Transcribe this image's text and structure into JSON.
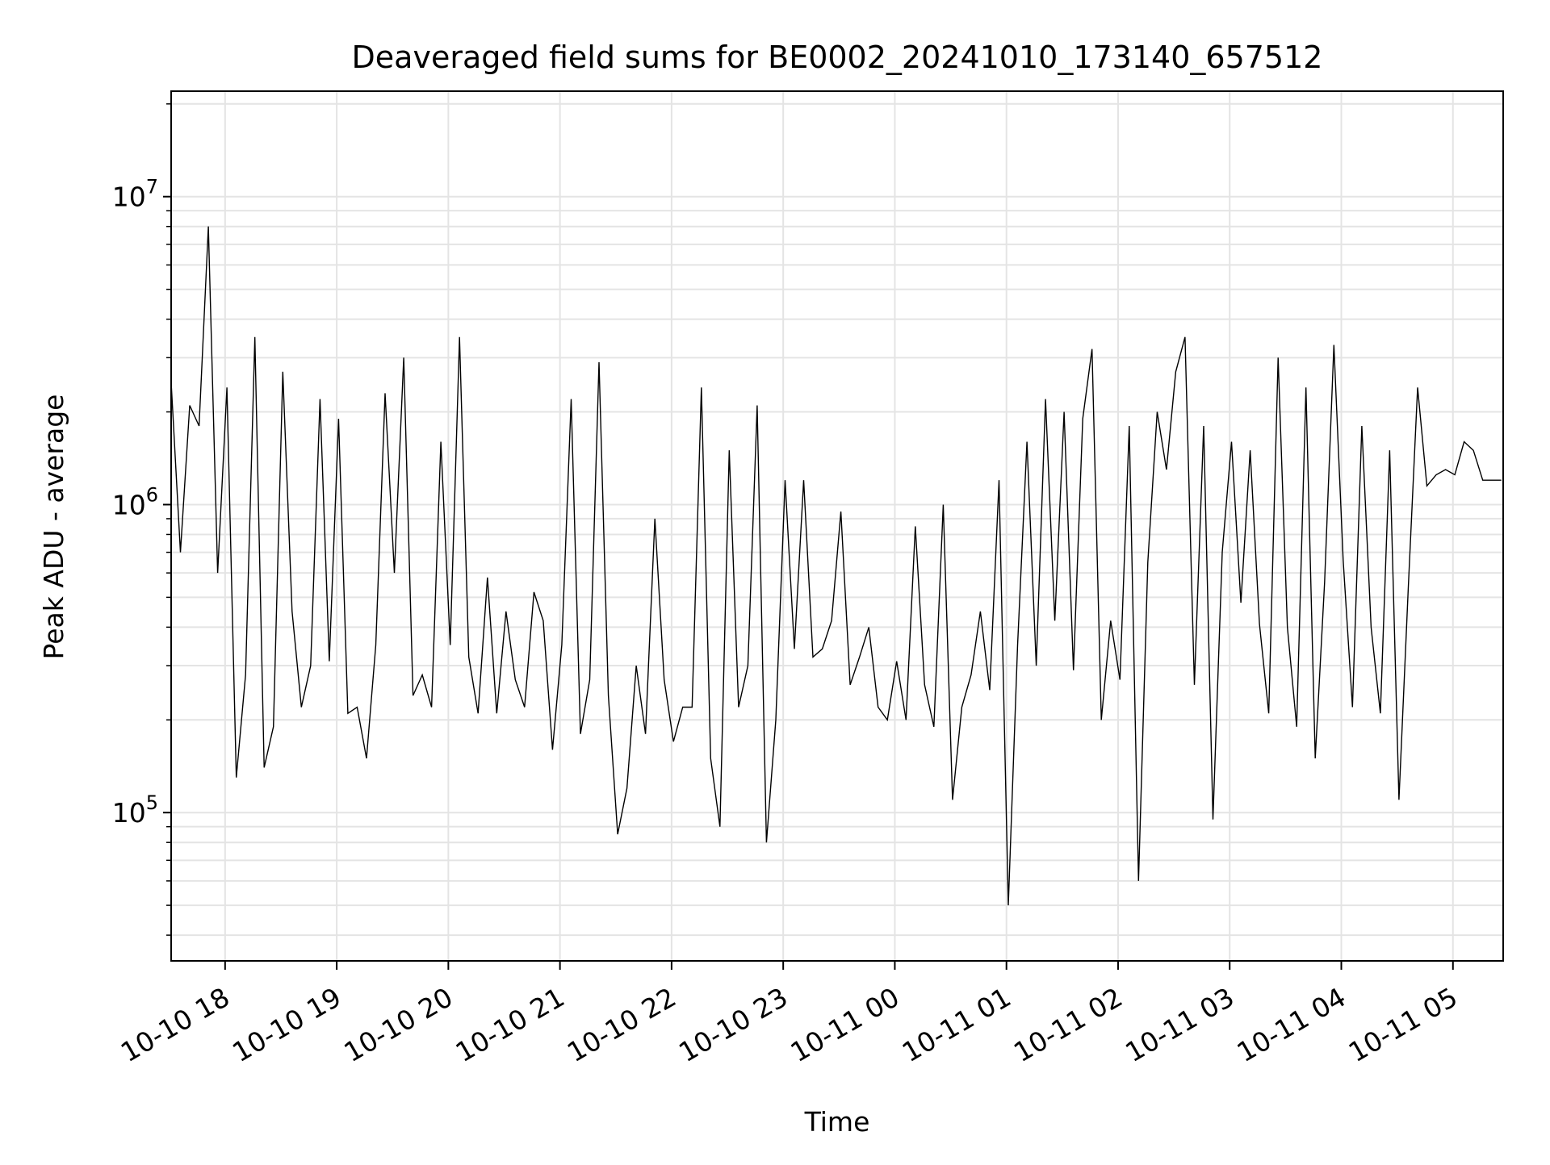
{
  "chart_data": {
    "type": "line",
    "title": "Deaveraged field sums for BE0002_20241010_173140_657512",
    "xlabel": "Time",
    "ylabel": "Peak ADU - average",
    "yscale": "log",
    "ylim": [
      33000,
      22000000
    ],
    "xlim": [
      "2024-10-10 17:31",
      "2024-10-11 05:27"
    ],
    "grid": true,
    "x_ticks": [
      "10-10 18",
      "10-10 19",
      "10-10 20",
      "10-10 21",
      "10-10 22",
      "10-10 23",
      "10-11 00",
      "10-11 01",
      "10-11 02",
      "10-11 03",
      "10-11 04",
      "10-11 05"
    ],
    "y_ticks": [
      {
        "value": 100000,
        "base": "10",
        "exp": "5"
      },
      {
        "value": 1000000,
        "base": "10",
        "exp": "6"
      },
      {
        "value": 10000000,
        "base": "10",
        "exp": "7"
      }
    ],
    "series": [
      {
        "color": "#000000",
        "x": [
          "2024-10-10 17:31",
          "2024-10-10 17:36",
          "2024-10-10 17:41",
          "2024-10-10 17:46",
          "2024-10-10 17:51",
          "2024-10-10 17:56",
          "2024-10-10 18:01",
          "2024-10-10 18:06",
          "2024-10-10 18:11",
          "2024-10-10 18:16",
          "2024-10-10 18:21",
          "2024-10-10 18:26",
          "2024-10-10 18:31",
          "2024-10-10 18:36",
          "2024-10-10 18:41",
          "2024-10-10 18:46",
          "2024-10-10 18:51",
          "2024-10-10 18:56",
          "2024-10-10 19:01",
          "2024-10-10 19:06",
          "2024-10-10 19:11",
          "2024-10-10 19:16",
          "2024-10-10 19:21",
          "2024-10-10 19:26",
          "2024-10-10 19:31",
          "2024-10-10 19:36",
          "2024-10-10 19:41",
          "2024-10-10 19:46",
          "2024-10-10 19:51",
          "2024-10-10 19:56",
          "2024-10-10 20:01",
          "2024-10-10 20:06",
          "2024-10-10 20:11",
          "2024-10-10 20:16",
          "2024-10-10 20:21",
          "2024-10-10 20:26",
          "2024-10-10 20:31",
          "2024-10-10 20:36",
          "2024-10-10 20:41",
          "2024-10-10 20:46",
          "2024-10-10 20:51",
          "2024-10-10 20:56",
          "2024-10-10 21:01",
          "2024-10-10 21:06",
          "2024-10-10 21:11",
          "2024-10-10 21:16",
          "2024-10-10 21:21",
          "2024-10-10 21:26",
          "2024-10-10 21:31",
          "2024-10-10 21:36",
          "2024-10-10 21:41",
          "2024-10-10 21:46",
          "2024-10-10 21:51",
          "2024-10-10 21:56",
          "2024-10-10 22:01",
          "2024-10-10 22:06",
          "2024-10-10 22:11",
          "2024-10-10 22:16",
          "2024-10-10 22:21",
          "2024-10-10 22:26",
          "2024-10-10 22:31",
          "2024-10-10 22:36",
          "2024-10-10 22:41",
          "2024-10-10 22:46",
          "2024-10-10 22:51",
          "2024-10-10 22:56",
          "2024-10-10 23:01",
          "2024-10-10 23:06",
          "2024-10-10 23:11",
          "2024-10-10 23:16",
          "2024-10-10 23:21",
          "2024-10-10 23:26",
          "2024-10-10 23:31",
          "2024-10-10 23:36",
          "2024-10-10 23:41",
          "2024-10-10 23:46",
          "2024-10-10 23:51",
          "2024-10-10 23:56",
          "2024-10-11 00:01",
          "2024-10-11 00:06",
          "2024-10-11 00:11",
          "2024-10-11 00:16",
          "2024-10-11 00:21",
          "2024-10-11 00:26",
          "2024-10-11 00:31",
          "2024-10-11 00:36",
          "2024-10-11 00:41",
          "2024-10-11 00:46",
          "2024-10-11 00:51",
          "2024-10-11 00:56",
          "2024-10-11 01:01",
          "2024-10-11 01:06",
          "2024-10-11 01:11",
          "2024-10-11 01:16",
          "2024-10-11 01:21",
          "2024-10-11 01:26",
          "2024-10-11 01:31",
          "2024-10-11 01:36",
          "2024-10-11 01:41",
          "2024-10-11 01:46",
          "2024-10-11 01:51",
          "2024-10-11 01:56",
          "2024-10-11 02:01",
          "2024-10-11 02:06",
          "2024-10-11 02:11",
          "2024-10-11 02:16",
          "2024-10-11 02:21",
          "2024-10-11 02:26",
          "2024-10-11 02:31",
          "2024-10-11 02:36",
          "2024-10-11 02:41",
          "2024-10-11 02:46",
          "2024-10-11 02:51",
          "2024-10-11 02:56",
          "2024-10-11 03:01",
          "2024-10-11 03:06",
          "2024-10-11 03:11",
          "2024-10-11 03:16",
          "2024-10-11 03:21",
          "2024-10-11 03:26",
          "2024-10-11 03:31",
          "2024-10-11 03:36",
          "2024-10-11 03:41",
          "2024-10-11 03:46",
          "2024-10-11 03:51",
          "2024-10-11 03:56",
          "2024-10-11 04:01",
          "2024-10-11 04:06",
          "2024-10-11 04:11",
          "2024-10-11 04:16",
          "2024-10-11 04:21",
          "2024-10-11 04:26",
          "2024-10-11 04:31",
          "2024-10-11 04:36",
          "2024-10-11 04:41",
          "2024-10-11 04:46",
          "2024-10-11 04:51",
          "2024-10-11 04:56",
          "2024-10-11 05:01",
          "2024-10-11 05:06",
          "2024-10-11 05:11",
          "2024-10-11 05:16",
          "2024-10-11 05:21",
          "2024-10-11 05:26"
        ],
        "y": [
          2500000,
          700000,
          2100000,
          1800000,
          8000000,
          600000,
          2400000,
          130000,
          280000,
          3500000,
          140000,
          190000,
          2700000,
          450000,
          220000,
          300000,
          2200000,
          310000,
          1900000,
          210000,
          220000,
          150000,
          350000,
          2300000,
          600000,
          3000000,
          240000,
          280000,
          220000,
          1600000,
          350000,
          3500000,
          320000,
          210000,
          580000,
          210000,
          450000,
          270000,
          220000,
          520000,
          420000,
          160000,
          350000,
          2200000,
          180000,
          270000,
          2900000,
          240000,
          85000,
          120000,
          300000,
          180000,
          900000,
          270000,
          170000,
          220000,
          220000,
          2400000,
          150000,
          90000,
          1500000,
          220000,
          300000,
          2100000,
          80000,
          200000,
          1200000,
          340000,
          1200000,
          320000,
          340000,
          420000,
          950000,
          260000,
          320000,
          400000,
          220000,
          200000,
          310000,
          200000,
          850000,
          260000,
          190000,
          1000000,
          110000,
          220000,
          280000,
          450000,
          250000,
          1200000,
          50000,
          350000,
          1600000,
          300000,
          2200000,
          420000,
          2000000,
          290000,
          1900000,
          3200000,
          200000,
          420000,
          270000,
          1800000,
          60000,
          650000,
          2000000,
          1300000,
          2700000,
          3500000,
          260000,
          1800000,
          95000,
          700000,
          1600000,
          480000,
          1500000,
          410000,
          210000,
          3000000,
          400000,
          190000,
          2400000,
          150000,
          560000,
          3300000,
          660000,
          220000,
          1800000,
          400000,
          210000,
          1500000,
          110000,
          540000,
          2400000,
          1150000,
          1250000,
          1300000,
          1250000,
          1600000,
          1500000,
          1200000,
          1200000,
          1200000
        ]
      }
    ]
  }
}
